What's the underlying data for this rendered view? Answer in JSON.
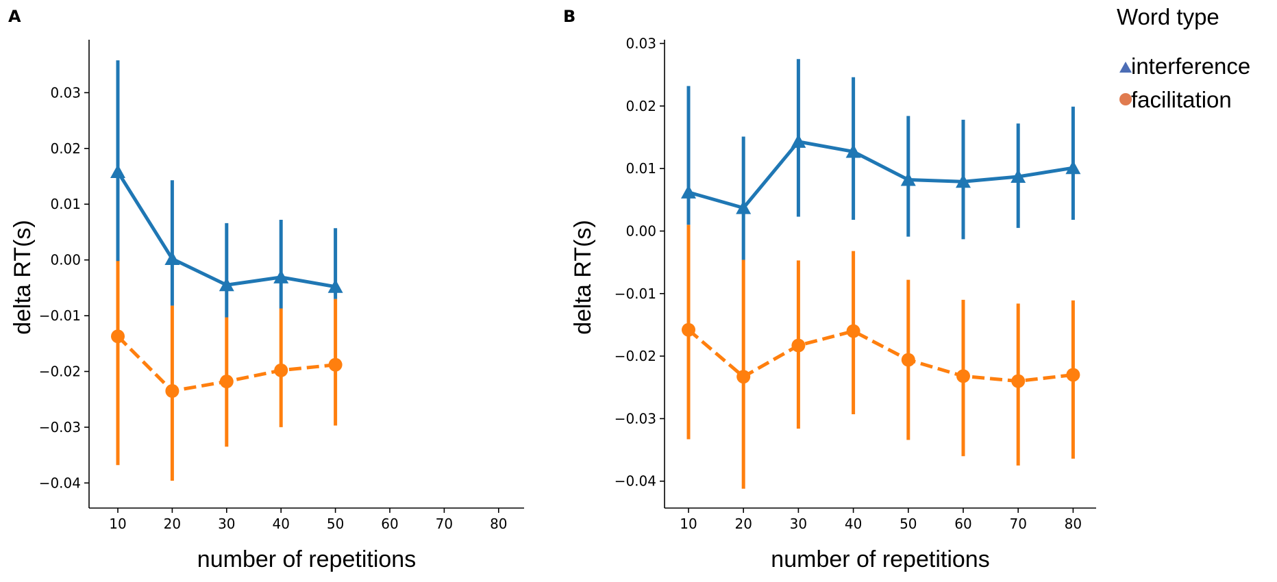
{
  "colors": {
    "interference": "#1f77b4",
    "facilitation": "#ff7f0e",
    "legend_interference_marker": "#4c6db5",
    "legend_facilitation_marker": "#e07b4f",
    "axis": "#000000"
  },
  "legend": {
    "title": "Word type",
    "items": [
      {
        "label": "interference",
        "marker": "triangle-icon"
      },
      {
        "label": "facilitation",
        "marker": "circle-icon"
      }
    ]
  },
  "chart_data": [
    {
      "panel_label": "A",
      "type": "line",
      "xlabel": "number of repetitions",
      "ylabel": "delta RT(s)",
      "x_ticks": [
        "10",
        "20",
        "30",
        "40",
        "50",
        "60",
        "70",
        "80"
      ],
      "y_ticks": [
        "0.03",
        "0.02",
        "0.01",
        "0.00",
        "−0.01",
        "−0.02",
        "−0.03",
        "−0.04"
      ],
      "y_tick_values": [
        0.03,
        0.02,
        0.01,
        0.0,
        -0.01,
        -0.02,
        -0.03,
        -0.04
      ],
      "ylim": [
        -0.0445,
        0.0395
      ],
      "series": [
        {
          "name": "interference",
          "linestyle": "solid",
          "marker": "triangle",
          "x": [
            10,
            20,
            30,
            40,
            50
          ],
          "values": [
            0.0158,
            0.0002,
            -0.0045,
            -0.0031,
            -0.0048
          ],
          "ci_low": [
            -0.0002,
            -0.0082,
            -0.0103,
            -0.0087,
            -0.007
          ],
          "ci_high": [
            0.0358,
            0.0143,
            0.0066,
            0.0072,
            0.0057
          ]
        },
        {
          "name": "facilitation",
          "linestyle": "dashed",
          "marker": "circle",
          "x": [
            10,
            20,
            30,
            40,
            50
          ],
          "values": [
            -0.0137,
            -0.0235,
            -0.0218,
            -0.0198,
            -0.0188
          ],
          "ci_low": [
            -0.0368,
            -0.0396,
            -0.0335,
            -0.03,
            -0.0297
          ],
          "ci_high": [
            0.0095,
            -0.0082,
            -0.0103,
            -0.0087,
            -0.007
          ]
        }
      ]
    },
    {
      "panel_label": "B",
      "type": "line",
      "xlabel": "number of repetitions",
      "ylabel": "delta RT(s)",
      "x_ticks": [
        "10",
        "20",
        "30",
        "40",
        "50",
        "60",
        "70",
        "80"
      ],
      "y_ticks": [
        "0.03",
        "0.02",
        "0.01",
        "0.00",
        "−0.01",
        "−0.02",
        "−0.03",
        "−0.04"
      ],
      "y_tick_values": [
        0.03,
        0.02,
        0.01,
        0.0,
        -0.01,
        -0.02,
        -0.03,
        -0.04
      ],
      "ylim": [
        -0.0443,
        0.0306
      ],
      "series": [
        {
          "name": "interference",
          "linestyle": "solid",
          "marker": "triangle",
          "x": [
            10,
            20,
            30,
            40,
            50,
            60,
            70,
            80
          ],
          "values": [
            0.0062,
            0.0037,
            0.0143,
            0.0127,
            0.0082,
            0.0079,
            0.0087,
            0.0101
          ],
          "ci_low": [
            0.001,
            -0.0046,
            0.0023,
            0.0018,
            -0.0009,
            -0.0013,
            0.0005,
            0.0018
          ],
          "ci_high": [
            0.0232,
            0.0151,
            0.0275,
            0.0246,
            0.0184,
            0.0178,
            0.0172,
            0.0199
          ]
        },
        {
          "name": "facilitation",
          "linestyle": "dashed",
          "marker": "circle",
          "x": [
            10,
            20,
            30,
            40,
            50,
            60,
            70,
            80
          ],
          "values": [
            -0.0158,
            -0.0233,
            -0.0183,
            -0.016,
            -0.0206,
            -0.0232,
            -0.024,
            -0.023
          ],
          "ci_low": [
            -0.0333,
            -0.0412,
            -0.0316,
            -0.0293,
            -0.0334,
            -0.036,
            -0.0375,
            -0.0364
          ],
          "ci_high": [
            0.001,
            -0.0046,
            -0.0047,
            -0.0032,
            -0.0078,
            -0.011,
            -0.0116,
            -0.0111
          ]
        }
      ]
    }
  ]
}
